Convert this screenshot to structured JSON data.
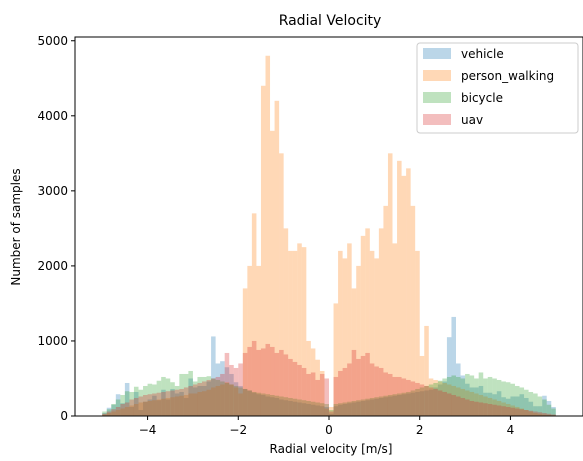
{
  "chart_data": {
    "type": "bar",
    "title": "Radial Velocity",
    "xlabel": "Radial velocity [m/s]",
    "ylabel": "Number of samples",
    "xlim": [
      -5.6,
      5.6
    ],
    "ylim": [
      0,
      5050
    ],
    "xticks": [
      -4,
      -2,
      0,
      2,
      4
    ],
    "xtick_labels": [
      "−4",
      "−2",
      "0",
      "2",
      "4"
    ],
    "yticks": [
      0,
      1000,
      2000,
      3000,
      4000,
      5000
    ],
    "ytick_labels": [
      "0",
      "1000",
      "2000",
      "3000",
      "4000",
      "5000"
    ],
    "bin_range": [
      -5,
      5
    ],
    "bin_count": 100,
    "grid": false,
    "legend_position": "top-right",
    "bar_opacity": 0.3,
    "series": [
      {
        "name": "vehicle",
        "color": "#1f77b4",
        "values": [
          40,
          110,
          150,
          290,
          170,
          440,
          120,
          320,
          80,
          190,
          220,
          270,
          210,
          350,
          220,
          360,
          300,
          320,
          240,
          500,
          380,
          400,
          400,
          460,
          1060,
          700,
          730,
          650,
          560,
          450,
          400,
          360,
          340,
          310,
          290,
          280,
          260,
          250,
          240,
          220,
          210,
          200,
          190,
          180,
          170,
          160,
          150,
          140,
          130,
          120,
          30,
          130,
          150,
          160,
          170,
          180,
          190,
          200,
          210,
          220,
          230,
          240,
          250,
          260,
          270,
          280,
          290,
          300,
          310,
          320,
          330,
          340,
          350,
          380,
          420,
          460,
          1050,
          1320,
          700,
          540,
          430,
          380,
          380,
          400,
          310,
          310,
          290,
          330,
          250,
          230,
          260,
          260,
          290,
          240,
          190,
          130,
          130,
          270,
          200,
          120
        ]
      },
      {
        "name": "person_walking",
        "color": "#ff7f0e",
        "values": [
          20,
          40,
          60,
          80,
          100,
          120,
          140,
          160,
          180,
          190,
          200,
          210,
          220,
          230,
          240,
          250,
          260,
          270,
          280,
          300,
          300,
          320,
          330,
          350,
          380,
          400,
          420,
          450,
          420,
          380,
          300,
          1700,
          2000,
          2700,
          2000,
          4400,
          4800,
          3800,
          4200,
          3500,
          2500,
          2200,
          2200,
          2300,
          2250,
          1000,
          900,
          750,
          600,
          100,
          120,
          1500,
          2200,
          2100,
          2300,
          1700,
          2000,
          2400,
          2500,
          2200,
          2100,
          2500,
          2800,
          3500,
          2300,
          3400,
          3200,
          3300,
          2800,
          2200,
          800,
          1200,
          500,
          480,
          460,
          440,
          420,
          400,
          380,
          360,
          340,
          320,
          300,
          280,
          260,
          240,
          220,
          200,
          180,
          160,
          140,
          120,
          100,
          80,
          60,
          40,
          30,
          20,
          15,
          10
        ]
      },
      {
        "name": "bicycle",
        "color": "#2ca02c",
        "values": [
          60,
          90,
          160,
          220,
          280,
          330,
          320,
          390,
          350,
          400,
          430,
          420,
          470,
          520,
          500,
          450,
          400,
          560,
          560,
          600,
          460,
          520,
          520,
          530,
          500,
          480,
          460,
          440,
          420,
          400,
          380,
          360,
          340,
          320,
          310,
          300,
          290,
          280,
          270,
          260,
          250,
          240,
          230,
          220,
          210,
          200,
          190,
          180,
          170,
          160,
          80,
          160,
          170,
          180,
          190,
          200,
          210,
          220,
          230,
          240,
          250,
          260,
          270,
          280,
          290,
          300,
          310,
          320,
          340,
          360,
          380,
          400,
          420,
          440,
          470,
          500,
          520,
          540,
          520,
          500,
          560,
          540,
          500,
          580,
          500,
          520,
          500,
          480,
          460,
          450,
          430,
          400,
          380,
          350,
          320,
          300,
          260,
          220,
          150,
          100
        ]
      },
      {
        "name": "uav",
        "color": "#d62728",
        "values": [
          30,
          60,
          90,
          120,
          160,
          180,
          220,
          240,
          260,
          280,
          290,
          300,
          310,
          320,
          330,
          340,
          350,
          360,
          380,
          400,
          420,
          440,
          460,
          480,
          500,
          520,
          560,
          840,
          680,
          640,
          700,
          840,
          920,
          1000,
          880,
          900,
          960,
          920,
          840,
          880,
          820,
          760,
          720,
          680,
          640,
          560,
          580,
          480,
          560,
          500,
          60,
          520,
          600,
          640,
          700,
          880,
          760,
          800,
          840,
          700,
          660,
          640,
          580,
          560,
          520,
          520,
          500,
          480,
          460,
          440,
          420,
          400,
          380,
          360,
          340,
          320,
          300,
          280,
          260,
          240,
          220,
          200,
          190,
          180,
          170,
          160,
          150,
          140,
          130,
          120,
          110,
          100,
          90,
          80,
          70,
          60,
          50,
          40,
          30,
          20
        ]
      }
    ]
  }
}
